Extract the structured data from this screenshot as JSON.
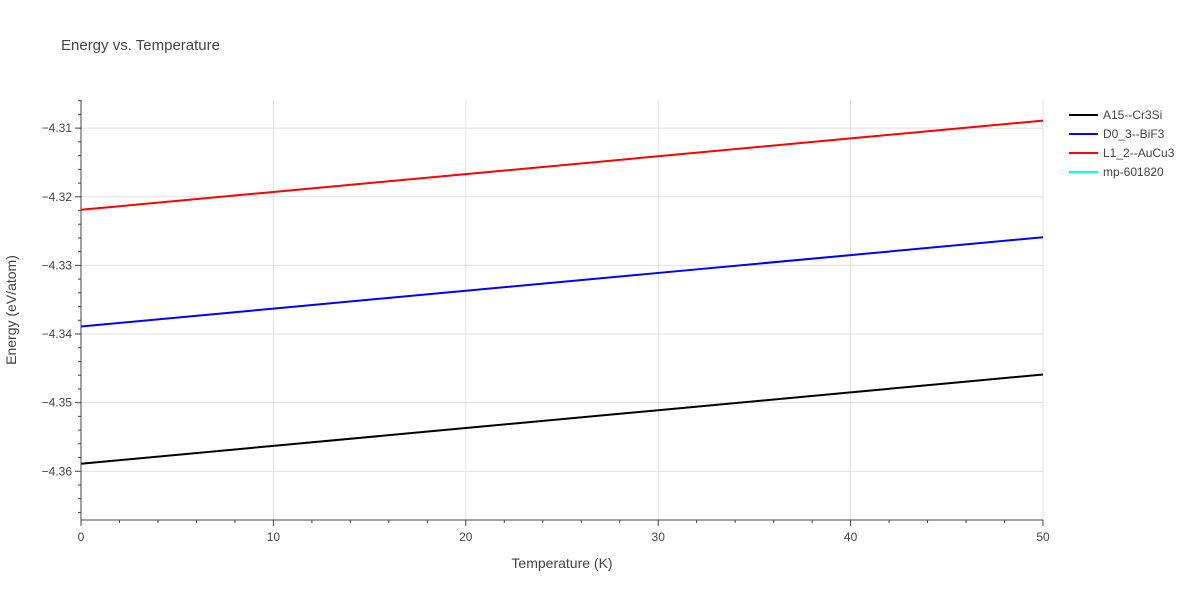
{
  "chart_data": {
    "type": "line",
    "title": "Energy vs. Temperature",
    "xlabel": "Temperature (K)",
    "ylabel": "Energy (eV/atom)",
    "xlim": [
      0,
      50
    ],
    "ylim": [
      -4.3671,
      -4.3059
    ],
    "x_ticks": [
      0,
      10,
      20,
      30,
      40,
      50
    ],
    "x_tick_labels": [
      "0",
      "10",
      "20",
      "30",
      "40",
      "50"
    ],
    "y_ticks": [
      -4.36,
      -4.35,
      -4.34,
      -4.33,
      -4.32,
      -4.31
    ],
    "y_tick_labels": [
      "−4.36",
      "−4.35",
      "−4.34",
      "−4.33",
      "−4.32",
      "−4.31"
    ],
    "grid": true,
    "legend_position": "top-right",
    "series": [
      {
        "name": "A15--Cr3Si",
        "color": "#000000",
        "x": [
          0,
          10,
          20,
          30,
          40,
          50
        ],
        "y": [
          -4.3589,
          -4.3563,
          -4.3537,
          -4.3511,
          -4.3485,
          -4.3459
        ]
      },
      {
        "name": "D0_3--BiF3",
        "color": "#0000ff",
        "x": [
          0,
          10,
          20,
          30,
          40,
          50
        ],
        "y": [
          -4.3389,
          -4.3363,
          -4.3337,
          -4.3311,
          -4.3285,
          -4.3259
        ]
      },
      {
        "name": "L1_2--AuCu3",
        "color": "#ff0000",
        "x": [
          0,
          10,
          20,
          30,
          40,
          50
        ],
        "y": [
          -4.3219,
          -4.3193,
          -4.3167,
          -4.3141,
          -4.3115,
          -4.3089
        ]
      },
      {
        "name": "mp-601820",
        "color": "#00ffff",
        "x": [],
        "y": []
      }
    ]
  }
}
